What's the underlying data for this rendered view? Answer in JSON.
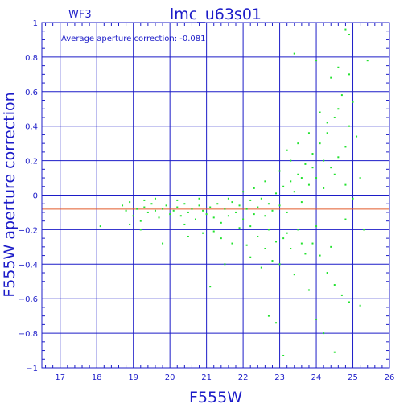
{
  "colors": {
    "axis": "#1c1cc8",
    "grid": "#1c1cc8",
    "points": "#22e22e",
    "average_line": "#e25a2a",
    "background": "#ffffff"
  },
  "chart_data": {
    "type": "scatter",
    "title": "lmc_u63s01",
    "corner_label": "WF3",
    "xlabel": "F555W",
    "ylabel": "F555W aperture correction",
    "annotation": "Average aperture correction: -0.081",
    "xlim": [
      16.5,
      26
    ],
    "ylim": [
      -1,
      1
    ],
    "xticks": [
      17,
      18,
      19,
      20,
      21,
      22,
      23,
      24,
      25,
      26
    ],
    "yticks": [
      -1,
      -0.8,
      -0.6,
      -0.4,
      -0.2,
      0,
      0.2,
      0.4,
      0.6,
      0.8,
      1
    ],
    "xtick_labels": [
      "17",
      "18",
      "19",
      "20",
      "21",
      "22",
      "23",
      "24",
      "25",
      "26"
    ],
    "ytick_labels": [
      "−1",
      "−0.8",
      "−0.6",
      "−0.4",
      "−0.2",
      "0",
      "0.2",
      "0.4",
      "0.6",
      "0.8",
      "1"
    ],
    "grid": true,
    "average_line_y": -0.081,
    "points": [
      [
        18.1,
        -0.18
      ],
      [
        18.7,
        -0.06
      ],
      [
        18.8,
        -0.09
      ],
      [
        18.9,
        -0.04
      ],
      [
        19.0,
        -0.12
      ],
      [
        19.1,
        -0.08
      ],
      [
        19.2,
        -0.15
      ],
      [
        19.3,
        -0.07
      ],
      [
        19.4,
        -0.1
      ],
      [
        19.5,
        -0.05
      ],
      [
        19.6,
        -0.09
      ],
      [
        19.7,
        -0.13
      ],
      [
        19.8,
        -0.08
      ],
      [
        19.9,
        -0.06
      ],
      [
        20.0,
        -0.11
      ],
      [
        20.1,
        -0.09
      ],
      [
        20.2,
        -0.07
      ],
      [
        20.3,
        -0.12
      ],
      [
        20.4,
        -0.05
      ],
      [
        20.5,
        -0.1
      ],
      [
        20.6,
        -0.08
      ],
      [
        20.7,
        -0.14
      ],
      [
        20.8,
        -0.06
      ],
      [
        20.9,
        -0.09
      ],
      [
        21.0,
        -0.11
      ],
      [
        21.1,
        -0.07
      ],
      [
        21.2,
        -0.13
      ],
      [
        21.3,
        -0.05
      ],
      [
        21.4,
        -0.16
      ],
      [
        21.5,
        -0.08
      ],
      [
        21.6,
        -0.12
      ],
      [
        21.7,
        -0.04
      ],
      [
        21.8,
        -0.1
      ],
      [
        21.9,
        -0.06
      ],
      [
        22.0,
        -0.14
      ],
      [
        22.1,
        -0.08
      ],
      [
        22.2,
        -0.03
      ],
      [
        22.3,
        -0.11
      ],
      [
        22.4,
        -0.07
      ],
      [
        22.5,
        -0.02
      ],
      [
        22.6,
        -0.12
      ],
      [
        22.7,
        -0.05
      ],
      [
        22.8,
        -0.09
      ],
      [
        22.9,
        0.01
      ],
      [
        23.0,
        -0.06
      ],
      [
        23.1,
        0.05
      ],
      [
        23.2,
        -0.1
      ],
      [
        23.3,
        0.08
      ],
      [
        23.4,
        0.02
      ],
      [
        23.5,
        0.12
      ],
      [
        23.6,
        -0.04
      ],
      [
        23.7,
        0.18
      ],
      [
        23.8,
        0.06
      ],
      [
        23.9,
        0.24
      ],
      [
        24.0,
        0.1
      ],
      [
        24.1,
        0.3
      ],
      [
        24.2,
        0.04
      ],
      [
        24.3,
        0.36
      ],
      [
        24.4,
        0.16
      ],
      [
        24.5,
        0.45
      ],
      [
        24.6,
        0.22
      ],
      [
        24.7,
        0.58
      ],
      [
        24.8,
        0.28
      ],
      [
        24.9,
        0.7
      ],
      [
        19.2,
        -0.2
      ],
      [
        19.6,
        -0.02
      ],
      [
        20.4,
        -0.17
      ],
      [
        20.8,
        -0.02
      ],
      [
        21.2,
        -0.21
      ],
      [
        21.6,
        -0.02
      ],
      [
        21.9,
        -0.19
      ],
      [
        22.2,
        -0.18
      ],
      [
        22.4,
        -0.24
      ],
      [
        22.7,
        -0.2
      ],
      [
        22.9,
        -0.27
      ],
      [
        23.1,
        -0.25
      ],
      [
        23.3,
        -0.31
      ],
      [
        23.5,
        -0.2
      ],
      [
        23.7,
        -0.34
      ],
      [
        23.9,
        -0.28
      ],
      [
        24.1,
        -0.35
      ],
      [
        24.3,
        -0.45
      ],
      [
        24.5,
        -0.52
      ],
      [
        24.7,
        -0.58
      ],
      [
        24.9,
        -0.62
      ],
      [
        25.2,
        -0.64
      ],
      [
        23.0,
        -0.4
      ],
      [
        22.8,
        -0.38
      ],
      [
        22.5,
        -0.42
      ],
      [
        22.2,
        -0.36
      ],
      [
        21.5,
        -0.4
      ],
      [
        21.1,
        -0.53
      ],
      [
        23.4,
        -0.46
      ],
      [
        23.8,
        -0.55
      ],
      [
        24.0,
        -0.72
      ],
      [
        22.7,
        -0.7
      ],
      [
        22.9,
        -0.74
      ],
      [
        23.1,
        -0.93
      ],
      [
        24.5,
        -0.91
      ],
      [
        24.2,
        -0.8
      ],
      [
        23.4,
        0.82
      ],
      [
        24.0,
        0.78
      ],
      [
        24.4,
        0.68
      ],
      [
        24.6,
        0.74
      ],
      [
        24.8,
        0.96
      ],
      [
        24.9,
        0.93
      ],
      [
        25.0,
        0.54
      ],
      [
        25.4,
        0.78
      ],
      [
        23.2,
        0.26
      ],
      [
        23.5,
        0.3
      ],
      [
        23.8,
        0.36
      ],
      [
        24.1,
        0.48
      ],
      [
        24.3,
        0.42
      ],
      [
        24.6,
        0.5
      ],
      [
        24.9,
        0.4
      ],
      [
        25.1,
        0.34
      ],
      [
        23.0,
        0.14
      ],
      [
        23.3,
        0.2
      ],
      [
        23.6,
        0.1
      ],
      [
        23.9,
        0.16
      ],
      [
        24.2,
        0.2
      ],
      [
        24.5,
        0.12
      ],
      [
        24.8,
        0.06
      ],
      [
        25.0,
        -0.02
      ],
      [
        25.2,
        0.1
      ],
      [
        22.6,
        0.08
      ],
      [
        22.3,
        0.04
      ],
      [
        22.0,
        0.02
      ],
      [
        21.7,
        -0.28
      ],
      [
        21.4,
        -0.25
      ],
      [
        20.9,
        -0.22
      ],
      [
        20.5,
        -0.24
      ],
      [
        19.8,
        -0.28
      ],
      [
        20.2,
        -0.03
      ],
      [
        19.3,
        -0.03
      ],
      [
        18.9,
        -0.17
      ],
      [
        22.1,
        -0.29
      ],
      [
        22.6,
        -0.31
      ],
      [
        23.2,
        -0.22
      ],
      [
        23.6,
        -0.28
      ],
      [
        24.0,
        -0.18
      ],
      [
        24.4,
        -0.3
      ],
      [
        24.8,
        -0.14
      ],
      [
        25.3,
        -0.2
      ]
    ]
  }
}
